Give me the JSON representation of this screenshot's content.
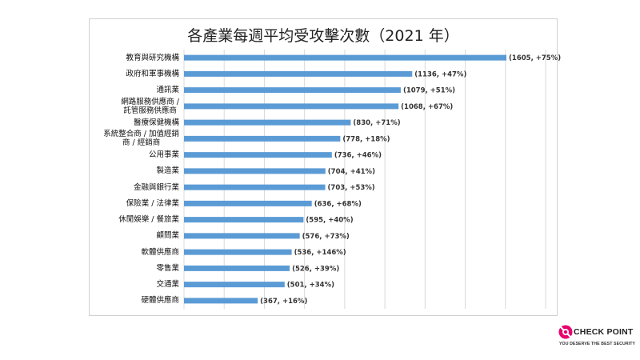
{
  "chart_data": {
    "type": "bar",
    "orientation": "horizontal",
    "title": "各產業每週平均受攻擊次數（2021 年）",
    "categories": [
      "教育與研究機構",
      "政府和軍事機構",
      "通訊業",
      "網路服務供應商 / 託管服務供應商",
      "醫療保健機構",
      "系統整合商 / 加值經銷商 / 經銷商",
      "公用事業",
      "製造業",
      "金融與銀行業",
      "保險業 / 法律業",
      "休閒娛樂 / 餐旅業",
      "顧問業",
      "軟體供應商",
      "零售業",
      "交通業",
      "硬體供應商"
    ],
    "category_lines": [
      [
        "教育與研究機構"
      ],
      [
        "政府和軍事機構"
      ],
      [
        "通訊業"
      ],
      [
        "網路服務供應商 /",
        "託管服務供應商"
      ],
      [
        "醫療保健機構"
      ],
      [
        "系統整合商 / 加值經銷",
        "商 / 經銷商"
      ],
      [
        "公用事業"
      ],
      [
        "製造業"
      ],
      [
        "金融與銀行業"
      ],
      [
        "保險業 / 法律業"
      ],
      [
        "休閒娛樂 / 餐旅業"
      ],
      [
        "顧問業"
      ],
      [
        "軟體供應商"
      ],
      [
        "零售業"
      ],
      [
        "交通業"
      ],
      [
        "硬體供應商"
      ]
    ],
    "values": [
      1605,
      1136,
      1079,
      1068,
      830,
      778,
      736,
      704,
      703,
      636,
      595,
      576,
      536,
      526,
      501,
      367
    ],
    "data_labels": [
      "(1605, +75%)",
      "(1136, +47%)",
      "(1079, +51%)",
      "(1068, +67%)",
      "(830, +71%)",
      "(778, +18%)",
      "(736, +46%)",
      "(704, +41%)",
      "(703, +53%)",
      "(636, +68%)",
      "(595, +40%)",
      "(576, +73%)",
      "(536, +146%)",
      "(526, +39%)",
      "(501, +34%)",
      "(367, +16%)"
    ],
    "xlim": [
      0,
      1800
    ],
    "grid": true,
    "bar_color": "#5b9bd5",
    "grid_color": "#d9d9d9"
  },
  "logo": {
    "brand": "CHECK POINT",
    "tagline": "YOU DESERVE THE BEST SECURITY",
    "color": "#e8006e"
  }
}
